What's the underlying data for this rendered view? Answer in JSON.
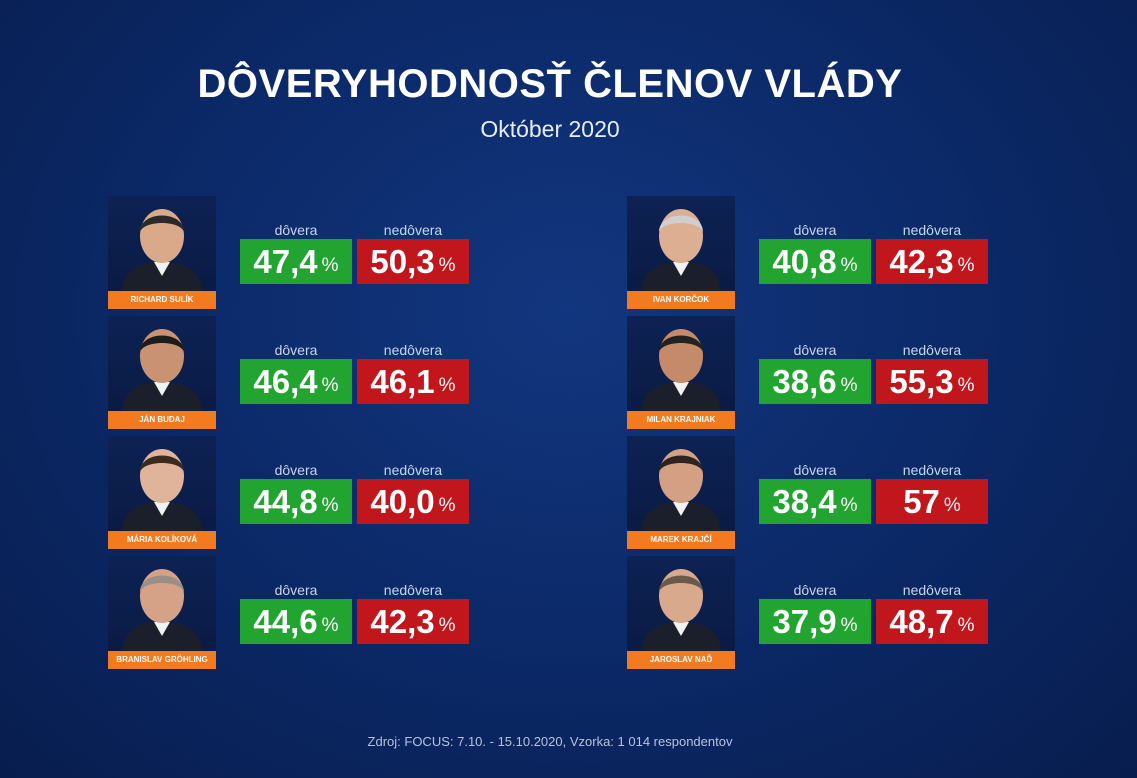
{
  "header": {
    "title": "DÔVERYHODNOSŤ ČLENOV VLÁDY",
    "subtitle": "Október 2020"
  },
  "labels": {
    "trust": "dôvera",
    "distrust": "nedôvera",
    "percent": "%"
  },
  "colors": {
    "trust": "#21a530",
    "distrust": "#c0161c",
    "name_bar": "#f47a20",
    "background": "#0b2866"
  },
  "footer": {
    "source": "Zdroj: FOCUS: 7.10. - 15.10.2020, Vzorka: 1 014 respondentov"
  },
  "chart_data": {
    "type": "table",
    "title": "DÔVERYHODNOSŤ ČLENOV VLÁDY",
    "subtitle": "Október 2020",
    "columns": [
      "dôvera",
      "nedôvera"
    ],
    "rows": [
      {
        "name": "RICHARD SULÍK",
        "trust": "47,4",
        "distrust": "50,3"
      },
      {
        "name": "JÁN BUDAJ",
        "trust": "46,4",
        "distrust": "46,1"
      },
      {
        "name": "MÁRIA KOLÍKOVÁ",
        "trust": "44,8",
        "distrust": "40,0"
      },
      {
        "name": "BRANISLAV GRÖHLING",
        "trust": "44,6",
        "distrust": "42,3"
      },
      {
        "name": "IVAN KORČOK",
        "trust": "40,8",
        "distrust": "42,3"
      },
      {
        "name": "MILAN KRAJNIAK",
        "trust": "38,6",
        "distrust": "55,3"
      },
      {
        "name": "MAREK KRAJČÍ",
        "trust": "38,4",
        "distrust": "57"
      },
      {
        "name": "JAROSLAV NAĎ",
        "trust": "37,9",
        "distrust": "48,7"
      }
    ]
  }
}
